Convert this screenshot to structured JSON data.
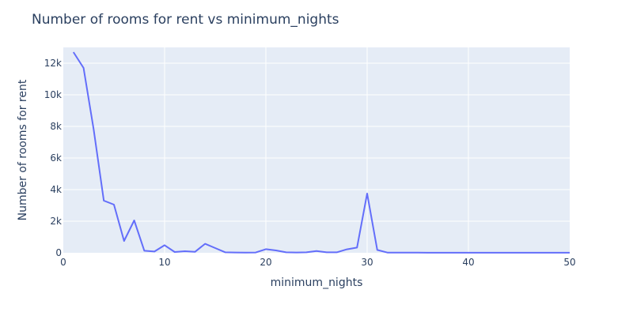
{
  "chart_data": {
    "type": "line",
    "title": "Number of rooms for rent vs minimum_nights",
    "xlabel": "minimum_nights",
    "ylabel": "Number of rooms for rent",
    "xlim": [
      0,
      50
    ],
    "ylim": [
      0,
      13000
    ],
    "x_ticks": [
      0,
      10,
      20,
      30,
      40,
      50
    ],
    "x_tick_labels": [
      "0",
      "10",
      "20",
      "30",
      "40",
      "50"
    ],
    "y_ticks": [
      0,
      2000,
      4000,
      6000,
      8000,
      10000,
      12000
    ],
    "y_tick_labels": [
      "0",
      "2k",
      "4k",
      "6k",
      "8k",
      "10k",
      "12k"
    ],
    "grid": true,
    "colors": {
      "plot_background": "#e5ecf6",
      "grid": "#ffffff",
      "line": "#636efa",
      "text": "#2a3f5f"
    },
    "series": [
      {
        "x": [
          1,
          2,
          3,
          4,
          5,
          6,
          7,
          8,
          9,
          10,
          11,
          12,
          13,
          14,
          15,
          16,
          17,
          18,
          19,
          20,
          21,
          22,
          23,
          24,
          25,
          26,
          27,
          28,
          29,
          30,
          31,
          32,
          33,
          34,
          35,
          36,
          37,
          38,
          39,
          40,
          41,
          42,
          43,
          44,
          45,
          46,
          47,
          48,
          49,
          50
        ],
        "values": [
          12700,
          11700,
          7800,
          3300,
          3050,
          750,
          2050,
          130,
          80,
          480,
          50,
          100,
          60,
          570,
          300,
          30,
          20,
          15,
          20,
          230,
          150,
          30,
          20,
          30,
          110,
          30,
          30,
          220,
          330,
          3750,
          180,
          15,
          10,
          10,
          10,
          8,
          8,
          8,
          8,
          8,
          5,
          5,
          5,
          5,
          5,
          5,
          5,
          5,
          5,
          5
        ]
      }
    ]
  }
}
